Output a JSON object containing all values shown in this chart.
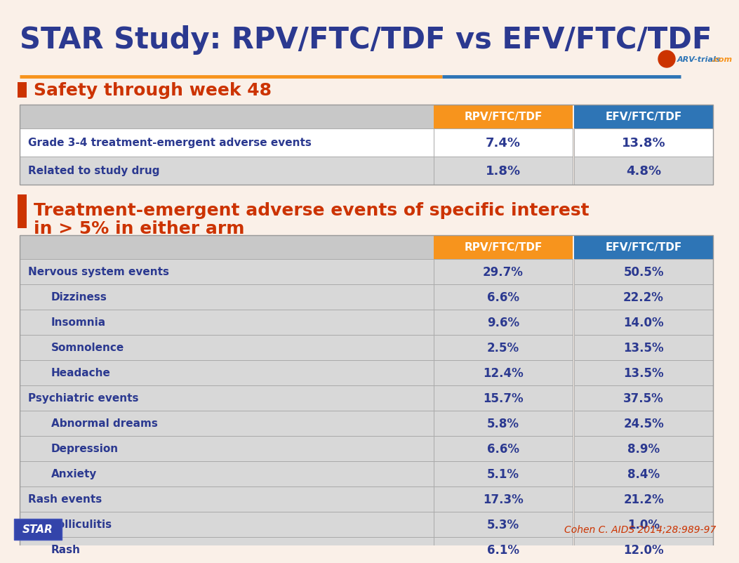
{
  "title": "STAR Study: RPV/FTC/TDF vs EFV/FTC/TDF",
  "title_color": "#2b3990",
  "bg_color": "#faf0e8",
  "section1_header": "Safety through week 48",
  "section2_header_line1": "Treatment-emergent adverse events of specific interest",
  "section2_header_line2": "in > 5% in either arm",
  "section_color": "#cc3300",
  "col1_header": "RPV/FTC/TDF",
  "col2_header": "EFV/FTC/TDF",
  "col1_color": "#f7941d",
  "col2_color": "#2e75b6",
  "header_text_color": "#ffffff",
  "table1_rows": [
    [
      "Grade 3-4 treatment-emergent adverse events",
      "7.4%",
      "13.8%",
      false
    ],
    [
      "Related to study drug",
      "1.8%",
      "4.8%",
      true
    ]
  ],
  "table2_rows": [
    [
      "Nervous system events",
      "29.7%",
      "50.5%",
      false,
      true
    ],
    [
      "Dizziness",
      "6.6%",
      "22.2%",
      true,
      false
    ],
    [
      "Insomnia",
      "9.6%",
      "14.0%",
      false,
      false
    ],
    [
      "Somnolence",
      "2.5%",
      "13.5%",
      true,
      false
    ],
    [
      "Headache",
      "12.4%",
      "13.5%",
      false,
      false
    ],
    [
      "Psychiatric events",
      "15.7%",
      "37.5%",
      true,
      true
    ],
    [
      "Abnormal dreams",
      "5.8%",
      "24.5%",
      false,
      false
    ],
    [
      "Depression",
      "6.6%",
      "8.9%",
      true,
      false
    ],
    [
      "Anxiety",
      "5.1%",
      "8.4%",
      false,
      false
    ],
    [
      "Rash events",
      "17.3%",
      "21.2%",
      true,
      true
    ],
    [
      "Folliculitis",
      "5.3%",
      "1.0%",
      false,
      false
    ],
    [
      "Rash",
      "6.1%",
      "12.0%",
      true,
      false
    ]
  ],
  "footer_left": "STAR",
  "footer_right": "Cohen C. AIDS 2014;28:989-97",
  "footer_right_color": "#cc3300",
  "data_text_color": "#2b3990",
  "bullet_color": "#cc3300",
  "orange_line_color": "#f7941d",
  "blue_line_color": "#2e75b6",
  "table_header_grey": "#c8c8c8",
  "row_white": "#ffffff",
  "row_grey": "#d8d8d8",
  "row_light_grey": "#e8e8e8"
}
